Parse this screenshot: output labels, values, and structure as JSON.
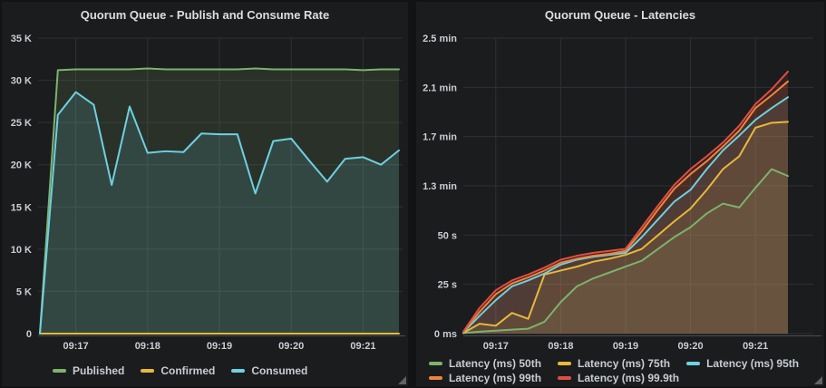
{
  "colors": {
    "page_bg": "#121314",
    "panel_bg": "#1b1c1e",
    "grid": "#2e3136",
    "axis_line": "#4a4d52",
    "tick_text": "#c9ced4",
    "title_text": "#dcdee1",
    "legend_text": "#c7ccd2"
  },
  "chart_data": [
    {
      "type": "line",
      "title": "Quorum Queue - Publish and Consume Rate",
      "legend_position": "bottom",
      "grid": true,
      "ylim": [
        0,
        35
      ],
      "y_unit": "thousands",
      "y_ticks": [
        {
          "v": 35,
          "label": "35 K"
        },
        {
          "v": 30,
          "label": "30 K"
        },
        {
          "v": 25,
          "label": "25 K"
        },
        {
          "v": 20,
          "label": "20 K"
        },
        {
          "v": 15,
          "label": "15 K"
        },
        {
          "v": 10,
          "label": "10 K"
        },
        {
          "v": 5,
          "label": "5 K"
        },
        {
          "v": 0,
          "label": "0"
        }
      ],
      "x_ticks": [
        {
          "index": 2,
          "label": "09:17"
        },
        {
          "index": 6,
          "label": "09:18"
        },
        {
          "index": 10,
          "label": "09:19"
        },
        {
          "index": 14,
          "label": "09:20"
        },
        {
          "index": 18,
          "label": "09:21"
        }
      ],
      "categories": [
        "09:16:30",
        "09:16:45",
        "09:17:00",
        "09:17:15",
        "09:17:30",
        "09:17:45",
        "09:18:00",
        "09:18:15",
        "09:18:30",
        "09:18:45",
        "09:19:00",
        "09:19:15",
        "09:19:30",
        "09:19:45",
        "09:20:00",
        "09:20:15",
        "09:20:30",
        "09:20:45",
        "09:21:00",
        "09:21:15",
        "09:21:30"
      ],
      "series": [
        {
          "name": "Published",
          "color": "#7EB26D",
          "values": [
            0,
            31.2,
            31.3,
            31.3,
            31.3,
            31.3,
            31.4,
            31.3,
            31.3,
            31.3,
            31.3,
            31.3,
            31.4,
            31.3,
            31.3,
            31.3,
            31.3,
            31.3,
            31.2,
            31.3,
            31.3
          ]
        },
        {
          "name": "Confirmed",
          "color": "#EAB839",
          "values": [
            0,
            0,
            0,
            0,
            0,
            0,
            0,
            0,
            0,
            0,
            0,
            0,
            0,
            0,
            0,
            0,
            0,
            0,
            0,
            0,
            0
          ]
        },
        {
          "name": "Consumed",
          "color": "#6ED0E0",
          "values": [
            0,
            25.9,
            28.6,
            27.1,
            17.6,
            26.9,
            21.4,
            21.6,
            21.5,
            23.7,
            23.6,
            23.6,
            16.6,
            22.8,
            23.1,
            20.5,
            18,
            20.7,
            20.9,
            20,
            21.7
          ]
        }
      ],
      "legend_rows": [
        [
          "Published",
          "Confirmed",
          "Consumed"
        ]
      ]
    },
    {
      "type": "line",
      "title": "Quorum Queue - Latencies",
      "legend_position": "bottom",
      "grid": true,
      "ylim": [
        0,
        150
      ],
      "y_unit": "seconds",
      "y_ticks": [
        {
          "v": 150,
          "label": "2.5 min"
        },
        {
          "v": 125,
          "label": "2.1 min"
        },
        {
          "v": 100,
          "label": "1.7 min"
        },
        {
          "v": 75,
          "label": "1.3 min"
        },
        {
          "v": 50,
          "label": "50 s"
        },
        {
          "v": 25,
          "label": "25 s"
        },
        {
          "v": 0,
          "label": "0 ms"
        }
      ],
      "x_ticks": [
        {
          "index": 2,
          "label": "09:17"
        },
        {
          "index": 6,
          "label": "09:18"
        },
        {
          "index": 10,
          "label": "09:19"
        },
        {
          "index": 14,
          "label": "09:20"
        },
        {
          "index": 18,
          "label": "09:21"
        }
      ],
      "categories": [
        "09:16:30",
        "09:16:45",
        "09:17:00",
        "09:17:15",
        "09:17:30",
        "09:17:45",
        "09:18:00",
        "09:18:15",
        "09:18:30",
        "09:18:45",
        "09:19:00",
        "09:19:15",
        "09:19:30",
        "09:19:45",
        "09:20:00",
        "09:20:15",
        "09:20:30",
        "09:20:45",
        "09:21:00",
        "09:21:15",
        "09:21:30"
      ],
      "series": [
        {
          "name": "Latency (ms) 50th",
          "color": "#7EB26D",
          "values": [
            0.3,
            1,
            1.5,
            2,
            2.5,
            6,
            16,
            24,
            28,
            31,
            34,
            37,
            43,
            49,
            54,
            61,
            66,
            64,
            74,
            83.5,
            80
          ]
        },
        {
          "name": "Latency (ms) 75th",
          "color": "#EAB839",
          "values": [
            0.3,
            5,
            4,
            10.5,
            7.5,
            30,
            32,
            34,
            36.5,
            38,
            40,
            43,
            50,
            57,
            63.5,
            73,
            83.5,
            90,
            104.5,
            107,
            107.5
          ]
        },
        {
          "name": "Latency (ms) 95th",
          "color": "#6ED0E0",
          "values": [
            0.6,
            9,
            17,
            24,
            27,
            30.5,
            35,
            37.5,
            39,
            40,
            41,
            49,
            58,
            67,
            73,
            83.5,
            93,
            100.5,
            108.5,
            114.5,
            120
          ]
        },
        {
          "name": "Latency (ms) 99th",
          "color": "#EF843C",
          "values": [
            0.8,
            11,
            20,
            25.5,
            28.5,
            32,
            36,
            38,
            39.5,
            40.5,
            42,
            52,
            63,
            73.5,
            81,
            87.5,
            95,
            103,
            114.5,
            121,
            128
          ]
        },
        {
          "name": "Latency (ms) 99.9th",
          "color": "#E24D42",
          "values": [
            1,
            13,
            22,
            27,
            30,
            33.5,
            37.5,
            39.5,
            41,
            42,
            43,
            54,
            65,
            75.5,
            83.5,
            90,
            97,
            105.5,
            116.5,
            124,
            133
          ]
        }
      ],
      "legend_rows": [
        [
          "Latency (ms) 50th",
          "Latency (ms) 75th",
          "Latency (ms) 95th"
        ],
        [
          "Latency (ms) 99th",
          "Latency (ms) 99.9th"
        ]
      ]
    }
  ]
}
